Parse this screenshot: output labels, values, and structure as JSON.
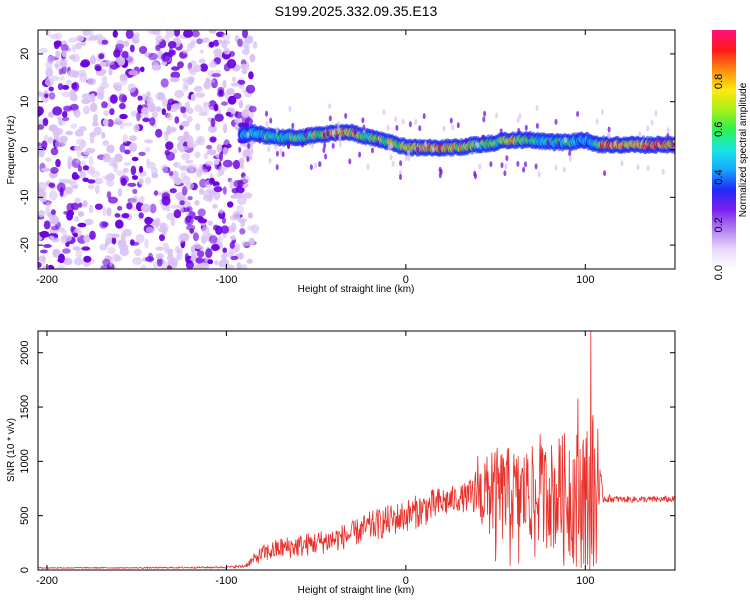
{
  "title": "S199.2025.332.09.35.E13",
  "colors": {
    "snr_line": "#e8302a",
    "spectrogram_strong": "#6a00e0",
    "spectrogram_weak": "#d8c0f4"
  },
  "colormap": [
    "#ffffff",
    "#e8d8fb",
    "#b27cf2",
    "#7a1ff0",
    "#1f2cf5",
    "#15a8ff",
    "#18e6e0",
    "#30f050",
    "#a8f018",
    "#ffe810",
    "#ff8a10",
    "#ff1818",
    "#ff1080"
  ],
  "chart_data": [
    {
      "type": "heatmap",
      "name": "spectrogram",
      "xlabel": "Height of straight line (km)",
      "ylabel": "Frequency (Hz)",
      "xlim": [
        -205,
        150
      ],
      "ylim": [
        -25,
        25
      ],
      "xticks": [
        "-200",
        "-100",
        "0",
        "100"
      ],
      "xtick_values": [
        -200,
        -100,
        0,
        100
      ],
      "yticks": [
        "-20",
        "-10",
        "0",
        "10",
        "20"
      ],
      "ytick_values": [
        -20,
        -10,
        0,
        10,
        20
      ],
      "noise_region_x": [
        -205,
        -90
      ],
      "track_x": [
        -92,
        -85,
        -80,
        -70,
        -60,
        -50,
        -40,
        -30,
        -20,
        -10,
        0,
        10,
        20,
        30,
        40,
        50,
        60,
        70,
        80,
        90,
        100,
        105,
        110,
        120,
        130,
        140,
        150
      ],
      "track_f": [
        3,
        3.5,
        3,
        2.5,
        2.5,
        3,
        3.5,
        3.5,
        2.5,
        1.5,
        0.5,
        0.3,
        0.3,
        0.5,
        1,
        1.5,
        2,
        2,
        1.5,
        1.5,
        2,
        1,
        1,
        1,
        1,
        1,
        1
      ],
      "track_amp": [
        0.3,
        0.4,
        0.45,
        0.5,
        0.55,
        0.65,
        0.8,
        0.75,
        0.6,
        0.6,
        0.7,
        0.8,
        0.85,
        0.75,
        0.55,
        0.6,
        0.75,
        0.55,
        0.45,
        0.4,
        0.35,
        0.4,
        0.85,
        0.9,
        0.8,
        0.85,
        0.8
      ],
      "colorbar": {
        "label": "Normalized spectral amplitude",
        "range": [
          0,
          1
        ],
        "ticks": [
          "0.0",
          "0.2",
          "0.4",
          "0.6",
          "0.8"
        ],
        "tick_values": [
          0,
          0.2,
          0.4,
          0.6,
          0.8
        ]
      }
    },
    {
      "type": "line",
      "name": "snr",
      "xlabel": "Height of straight line (km)",
      "ylabel": "SNR (10 * v/v)",
      "xlim": [
        -205,
        150
      ],
      "ylim": [
        0,
        2200
      ],
      "xticks": [
        "-200",
        "-100",
        "0",
        "100"
      ],
      "xtick_values": [
        -200,
        -100,
        0,
        100
      ],
      "yticks": [
        "0",
        "500",
        "1000",
        "1500",
        "2000"
      ],
      "ytick_values": [
        0,
        500,
        1000,
        1500,
        2000
      ],
      "series": [
        {
          "name": "SNR",
          "x": [
            -205,
            -150,
            -100,
            -90,
            -80,
            -70,
            -60,
            -50,
            -40,
            -30,
            -20,
            -10,
            0,
            10,
            20,
            30,
            35,
            40,
            50,
            60,
            70,
            80,
            90,
            100,
            105,
            110,
            120,
            130,
            140,
            150
          ],
          "baseline": [
            20,
            20,
            25,
            35,
            150,
            200,
            220,
            250,
            280,
            330,
            400,
            450,
            500,
            560,
            620,
            660,
            670,
            680,
            680,
            690,
            690,
            690,
            690,
            690,
            690,
            660,
            650,
            650,
            650,
            650
          ],
          "noise": [
            5,
            5,
            8,
            15,
            80,
            100,
            110,
            110,
            120,
            120,
            140,
            150,
            150,
            160,
            150,
            120,
            150,
            300,
            450,
            450,
            450,
            500,
            600,
            700,
            800,
            40,
            30,
            30,
            30,
            30
          ]
        }
      ],
      "spikes": [
        {
          "x": 40,
          "y": 1050
        },
        {
          "x": 44,
          "y": 980
        },
        {
          "x": 48,
          "y": 1080
        },
        {
          "x": 55,
          "y": 950
        },
        {
          "x": 62,
          "y": 920
        },
        {
          "x": 68,
          "y": 1020
        },
        {
          "x": 75,
          "y": 1250
        },
        {
          "x": 80,
          "y": 850
        },
        {
          "x": 86,
          "y": 1150
        },
        {
          "x": 91,
          "y": 1100
        },
        {
          "x": 96,
          "y": 1580
        },
        {
          "x": 99,
          "y": 1200
        },
        {
          "x": 103,
          "y": 2200
        },
        {
          "x": 107,
          "y": 1300
        }
      ],
      "dips": [
        {
          "x": 50,
          "y": 80
        },
        {
          "x": 58,
          "y": 40
        },
        {
          "x": 63,
          "y": 60
        },
        {
          "x": 72,
          "y": 120
        },
        {
          "x": 88,
          "y": 40
        },
        {
          "x": 95,
          "y": 30
        },
        {
          "x": 100,
          "y": 50
        },
        {
          "x": 106,
          "y": 60
        }
      ]
    }
  ]
}
